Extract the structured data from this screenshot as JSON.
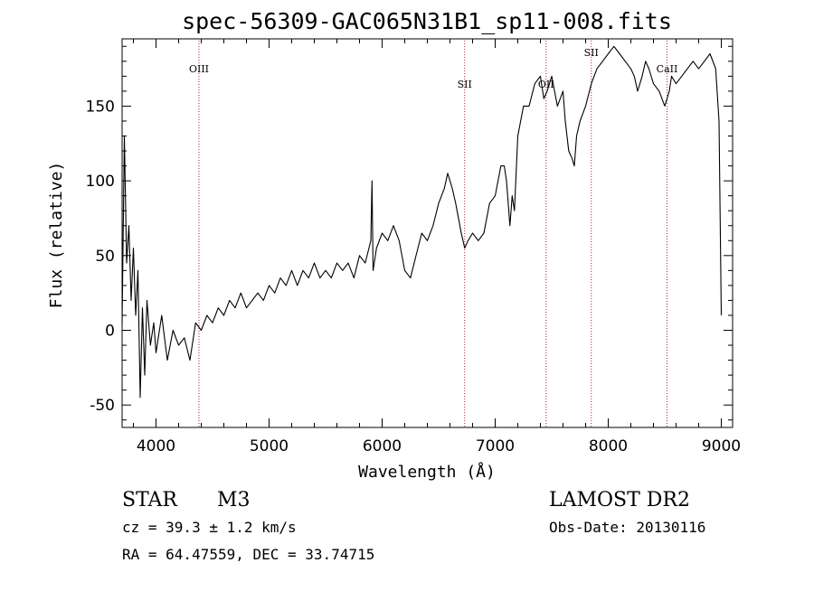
{
  "chart_data": {
    "type": "line",
    "title": "spec-56309-GAC065N31B1_sp11-008.fits",
    "xlabel": "Wavelength (Å)",
    "ylabel": "Flux (relative)",
    "xlim": [
      3700,
      9100
    ],
    "ylim": [
      -65,
      195
    ],
    "x_ticks": [
      4000,
      5000,
      6000,
      7000,
      8000,
      9000
    ],
    "y_ticks": [
      -50,
      0,
      50,
      100,
      150
    ],
    "grid": false,
    "line_color": "#000000",
    "marker_color": "#aa2222",
    "spectral_lines": [
      {
        "label": "OIII",
        "x": 4380
      },
      {
        "label": "SII",
        "x": 6730
      },
      {
        "label": "OII",
        "x": 7450
      },
      {
        "label": "SII",
        "x": 7850
      },
      {
        "label": "CaII",
        "x": 8520
      }
    ],
    "series": [
      {
        "x": [
          3700,
          3720,
          3740,
          3760,
          3780,
          3800,
          3820,
          3840,
          3860,
          3880,
          3900,
          3920,
          3950,
          3980,
          4000,
          4050,
          4100,
          4150,
          4200,
          4250,
          4300,
          4350,
          4400,
          4450,
          4500,
          4550,
          4600,
          4650,
          4700,
          4750,
          4800,
          4850,
          4900,
          4950,
          5000,
          5050,
          5100,
          5150,
          5200,
          5250,
          5300,
          5350,
          5400,
          5450,
          5500,
          5550,
          5600,
          5650,
          5700,
          5750,
          5800,
          5850,
          5900,
          5910,
          5920,
          5950,
          6000,
          6050,
          6100,
          6150,
          6200,
          6250,
          6300,
          6350,
          6400,
          6450,
          6500,
          6550,
          6580,
          6620,
          6650,
          6700,
          6730,
          6760,
          6800,
          6850,
          6900,
          6950,
          7000,
          7050,
          7080,
          7100,
          7130,
          7150,
          7170,
          7200,
          7250,
          7300,
          7350,
          7400,
          7430,
          7460,
          7500,
          7550,
          7600,
          7620,
          7650,
          7680,
          7700,
          7720,
          7750,
          7800,
          7850,
          7900,
          7950,
          8000,
          8050,
          8100,
          8150,
          8200,
          8230,
          8260,
          8300,
          8330,
          8360,
          8400,
          8450,
          8500,
          8520,
          8540,
          8560,
          8600,
          8650,
          8700,
          8750,
          8800,
          8850,
          8900,
          8950,
          8980,
          9000
        ],
        "values": [
          5,
          130,
          45,
          70,
          20,
          55,
          10,
          40,
          -45,
          15,
          -30,
          20,
          -10,
          5,
          -15,
          10,
          -20,
          0,
          -10,
          -5,
          -20,
          5,
          0,
          10,
          5,
          15,
          10,
          20,
          15,
          25,
          15,
          20,
          25,
          20,
          30,
          25,
          35,
          30,
          40,
          30,
          40,
          35,
          45,
          35,
          40,
          35,
          45,
          40,
          45,
          35,
          50,
          45,
          60,
          100,
          40,
          55,
          65,
          60,
          70,
          60,
          40,
          35,
          50,
          65,
          60,
          70,
          85,
          95,
          105,
          95,
          85,
          65,
          55,
          60,
          65,
          60,
          65,
          85,
          90,
          110,
          110,
          100,
          70,
          90,
          80,
          130,
          150,
          150,
          165,
          170,
          155,
          160,
          170,
          150,
          160,
          140,
          120,
          115,
          110,
          130,
          140,
          150,
          165,
          175,
          180,
          185,
          190,
          185,
          180,
          175,
          170,
          160,
          170,
          180,
          175,
          165,
          160,
          150,
          155,
          160,
          170,
          165,
          170,
          175,
          180,
          175,
          180,
          185,
          175,
          140,
          10
        ]
      }
    ]
  },
  "info": {
    "class": "STAR",
    "subclass": "M3",
    "cz": "cz = 39.3 ± 1.2 km/s",
    "coords": "RA =  64.47559, DEC =  33.74715",
    "survey": "LAMOST DR2",
    "obs_date": "Obs-Date: 20130116"
  }
}
